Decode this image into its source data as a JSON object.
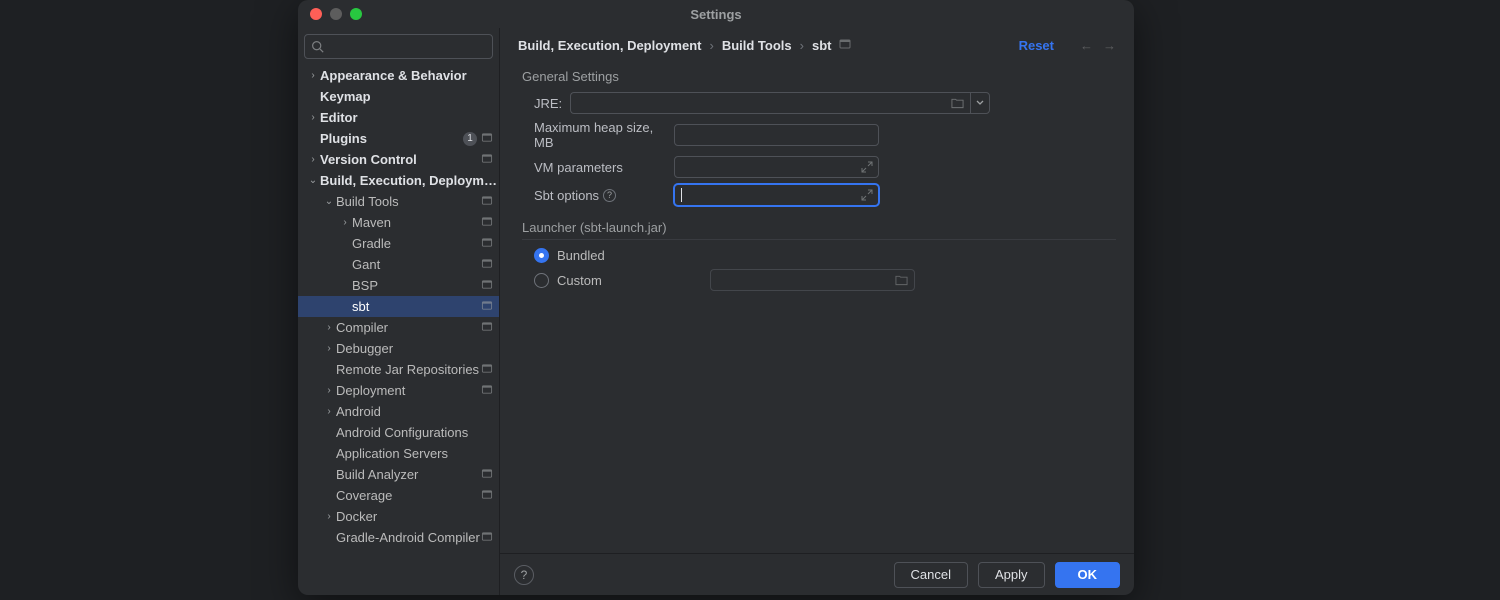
{
  "window": {
    "title": "Settings"
  },
  "search": {
    "placeholder": ""
  },
  "sidebar": {
    "items": [
      {
        "label": "Appearance & Behavior",
        "level": 0,
        "chevron": "right",
        "bold": true
      },
      {
        "label": "Keymap",
        "level": 0,
        "bold": true
      },
      {
        "label": "Editor",
        "level": 0,
        "chevron": "right",
        "bold": true
      },
      {
        "label": "Plugins",
        "level": 0,
        "bold": true,
        "badge": "1",
        "proj": true
      },
      {
        "label": "Version Control",
        "level": 0,
        "chevron": "right",
        "bold": true,
        "proj": true
      },
      {
        "label": "Build, Execution, Deployment",
        "level": 0,
        "chevron": "down",
        "bold": true
      },
      {
        "label": "Build Tools",
        "level": 1,
        "chevron": "down",
        "proj": true
      },
      {
        "label": "Maven",
        "level": 2,
        "chevron": "right",
        "proj": true
      },
      {
        "label": "Gradle",
        "level": 2,
        "proj": true
      },
      {
        "label": "Gant",
        "level": 2,
        "proj": true
      },
      {
        "label": "BSP",
        "level": 2,
        "proj": true
      },
      {
        "label": "sbt",
        "level": 2,
        "proj": true,
        "selected": true
      },
      {
        "label": "Compiler",
        "level": 1,
        "chevron": "right",
        "proj": true
      },
      {
        "label": "Debugger",
        "level": 1,
        "chevron": "right"
      },
      {
        "label": "Remote Jar Repositories",
        "level": 1,
        "proj": true
      },
      {
        "label": "Deployment",
        "level": 1,
        "chevron": "right",
        "proj": true
      },
      {
        "label": "Android",
        "level": 1,
        "chevron": "right"
      },
      {
        "label": "Android Configurations",
        "level": 1
      },
      {
        "label": "Application Servers",
        "level": 1
      },
      {
        "label": "Build Analyzer",
        "level": 1,
        "proj": true
      },
      {
        "label": "Coverage",
        "level": 1,
        "proj": true
      },
      {
        "label": "Docker",
        "level": 1,
        "chevron": "right"
      },
      {
        "label": "Gradle-Android Compiler",
        "level": 1,
        "proj": true
      }
    ]
  },
  "breadcrumb": {
    "a": "Build, Execution, Deployment",
    "b": "Build Tools",
    "c": "sbt"
  },
  "header": {
    "reset": "Reset"
  },
  "sections": {
    "general": "General Settings",
    "launcher": "Launcher (sbt-launch.jar)"
  },
  "labels": {
    "jre": "JRE:",
    "heap": "Maximum heap size, MB",
    "vm": "VM parameters",
    "sbtopts": "Sbt options",
    "bundled": "Bundled",
    "custom": "Custom"
  },
  "fields": {
    "jre": "",
    "heap": "",
    "vm": "",
    "sbtopts": "",
    "custom_path": ""
  },
  "footer": {
    "cancel": "Cancel",
    "apply": "Apply",
    "ok": "OK"
  },
  "colors": {
    "dialog_bg": "#2b2d30",
    "selection": "#2e436e",
    "accent": "#3574f0",
    "border": "#4e5157",
    "text": "#bcbec4",
    "text_bright": "#dfe1e5"
  }
}
